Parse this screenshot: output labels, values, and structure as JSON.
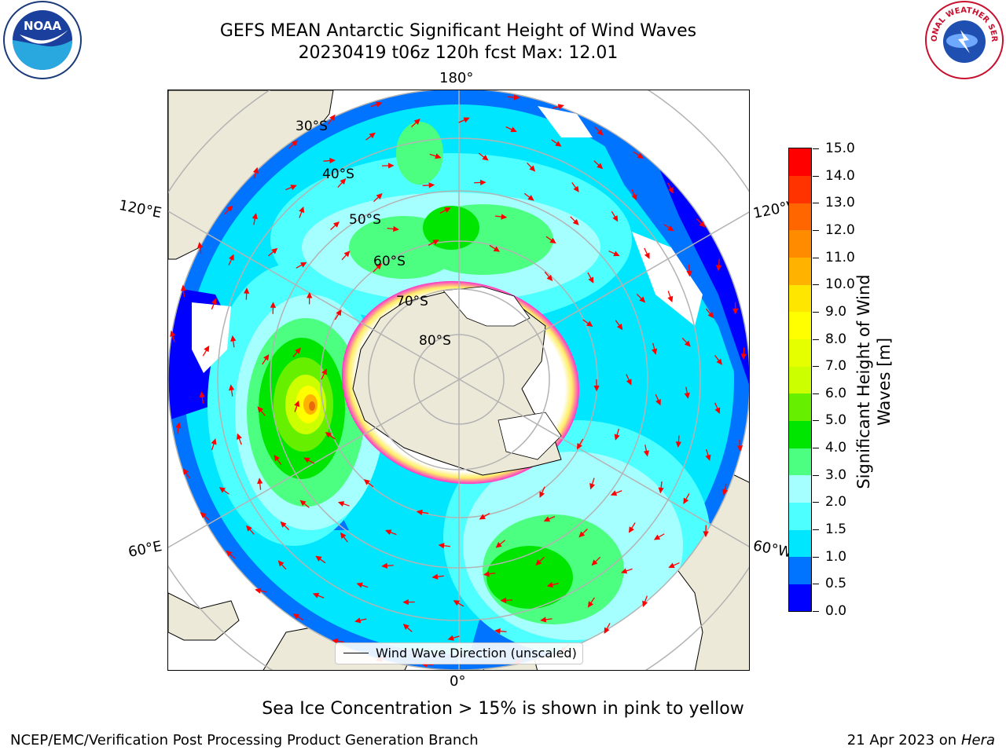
{
  "title": {
    "line1": "GEFS MEAN Antarctic Significant Height of Wind Waves",
    "line2": "20230419 t06z 120h fcst   Max: 12.01"
  },
  "map": {
    "projection": "south-polar-stereographic",
    "longitude_labels": [
      "180°",
      "0°",
      "120°E",
      "120°W",
      "60°E",
      "60°W"
    ],
    "latitude_labels": [
      "30°S",
      "40°S",
      "50°S",
      "60°S",
      "70°S",
      "80°S"
    ],
    "max_value_marker_color": "#e86a0a",
    "land_color": "#ede9d8",
    "sea_ice_colors": [
      "#ff33cc",
      "#ffee66"
    ],
    "vector_color": "#ff0000"
  },
  "legend": {
    "label": "Wind Wave Direction (unscaled)"
  },
  "colorbar": {
    "label": "Significant Height of Wind Waves [m]",
    "label_line1": "Significant Height of Wind",
    "label_line2": "Waves [m]",
    "ticks": [
      "0.0",
      "0.5",
      "1.0",
      "1.5",
      "2.0",
      "3.0",
      "4.0",
      "5.0",
      "6.0",
      "7.0",
      "8.0",
      "9.0",
      "10.0",
      "11.0",
      "12.0",
      "13.0",
      "14.0",
      "15.0"
    ],
    "colors": [
      "#0000ff",
      "#0073ff",
      "#00e6ff",
      "#4dffff",
      "#a6ffff",
      "#4dff80",
      "#00e600",
      "#66f000",
      "#ccff00",
      "#e6ff00",
      "#ffff00",
      "#ffe600",
      "#ffb300",
      "#ff8c00",
      "#ff6600",
      "#ff3300",
      "#ff0000"
    ]
  },
  "note": "Sea Ice Concentration > 15% is shown in pink to yellow",
  "footer": {
    "left": "NCEP/EMC/Verification Post Processing Product Generation Branch",
    "right_prefix": "21 Apr 2023 on ",
    "right_italic": "Hera"
  },
  "logos": {
    "noaa": "NOAA",
    "nws": "NATIONAL WEATHER SERVICE"
  }
}
